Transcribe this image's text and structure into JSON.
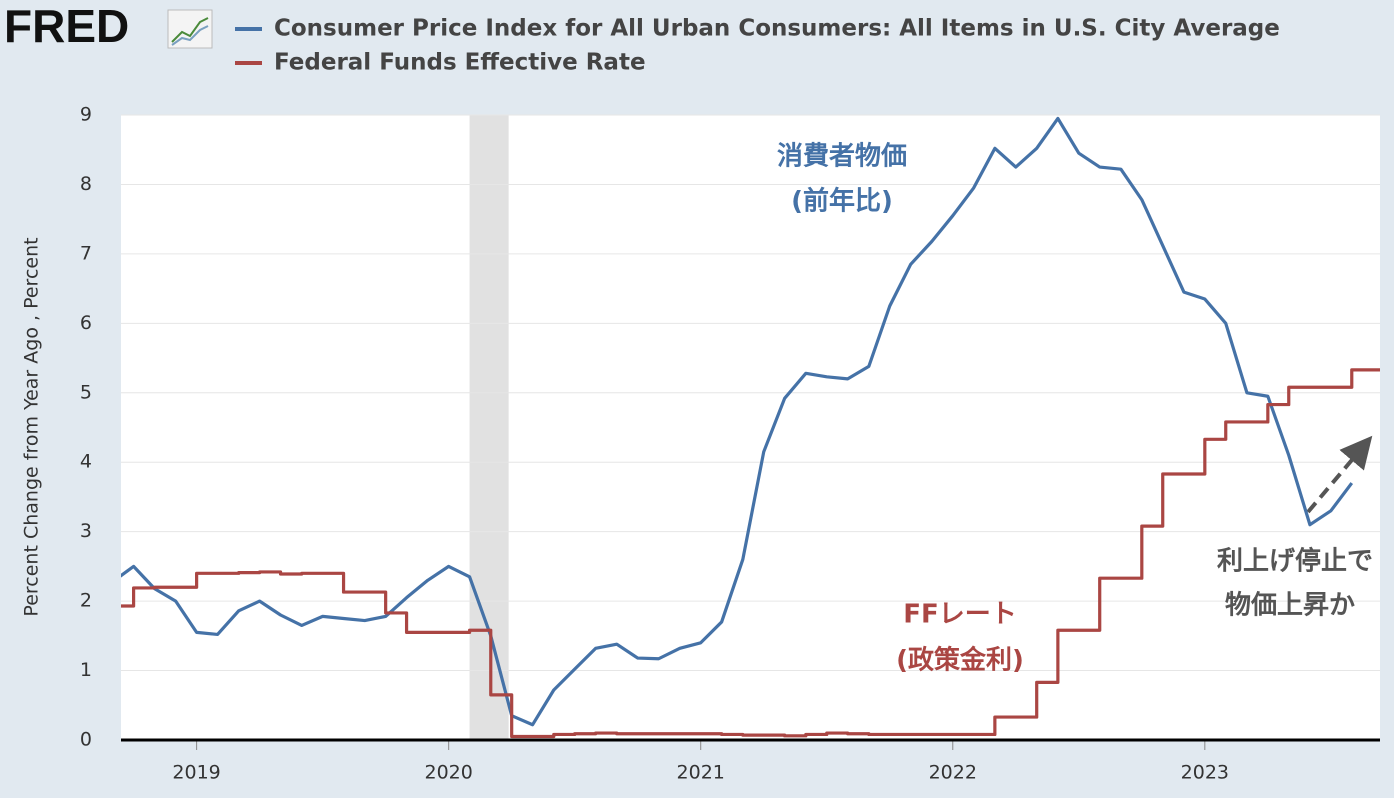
{
  "logo": "FRED",
  "chart_data": {
    "type": "line",
    "y_axis_label": "Percent Change from Year Ago , Percent",
    "xlim": [
      2018.7,
      2023.695
    ],
    "xticks": [
      2019,
      2020,
      2021,
      2022,
      2023
    ],
    "ylim": [
      0,
      9
    ],
    "yticks": [
      0,
      1,
      2,
      3,
      4,
      5,
      6,
      7,
      8,
      9
    ],
    "grid": true,
    "recession_shading": [
      2020.083,
      2020.238
    ],
    "series": [
      {
        "name": "Consumer Price Index for All Urban Consumers: All Items in U.S. City Average",
        "color": "#4572a7",
        "drawstyle": "line",
        "x": [
          2018.667,
          2018.75,
          2018.833,
          2018.917,
          2019.0,
          2019.083,
          2019.167,
          2019.25,
          2019.333,
          2019.417,
          2019.5,
          2019.583,
          2019.667,
          2019.75,
          2019.833,
          2019.917,
          2020.0,
          2020.083,
          2020.167,
          2020.25,
          2020.333,
          2020.417,
          2020.5,
          2020.583,
          2020.667,
          2020.75,
          2020.833,
          2020.917,
          2021.0,
          2021.083,
          2021.167,
          2021.25,
          2021.333,
          2021.417,
          2021.5,
          2021.583,
          2021.667,
          2021.75,
          2021.833,
          2021.917,
          2022.0,
          2022.083,
          2022.167,
          2022.25,
          2022.333,
          2022.417,
          2022.5,
          2022.583,
          2022.667,
          2022.75,
          2022.833,
          2022.917,
          2023.0,
          2023.083,
          2023.167,
          2023.25,
          2023.333,
          2023.417,
          2023.5,
          2023.583
        ],
        "values": [
          2.28,
          2.5,
          2.18,
          2.0,
          1.55,
          1.52,
          1.86,
          2.0,
          1.8,
          1.65,
          1.78,
          1.75,
          1.72,
          1.78,
          2.05,
          2.3,
          2.5,
          2.35,
          1.5,
          0.35,
          0.22,
          0.72,
          1.02,
          1.32,
          1.38,
          1.18,
          1.17,
          1.32,
          1.4,
          1.7,
          2.6,
          4.15,
          4.92,
          5.28,
          5.23,
          5.2,
          5.38,
          6.25,
          6.85,
          7.18,
          7.55,
          7.95,
          8.52,
          8.25,
          8.52,
          8.95,
          8.45,
          8.25,
          8.22,
          7.78,
          7.12,
          6.45,
          6.35,
          6.0,
          5.0,
          4.95,
          4.1,
          3.1,
          3.3,
          3.7
        ]
      },
      {
        "name": "Federal Funds Effective Rate",
        "color": "#aa4643",
        "drawstyle": "steps-post",
        "x": [
          2018.667,
          2018.75,
          2018.833,
          2018.917,
          2019.0,
          2019.083,
          2019.167,
          2019.25,
          2019.333,
          2019.417,
          2019.5,
          2019.583,
          2019.667,
          2019.75,
          2019.833,
          2019.917,
          2020.0,
          2020.083,
          2020.167,
          2020.25,
          2020.333,
          2020.417,
          2020.5,
          2020.583,
          2020.667,
          2020.75,
          2020.833,
          2020.917,
          2021.0,
          2021.083,
          2021.167,
          2021.25,
          2021.333,
          2021.417,
          2021.5,
          2021.583,
          2021.667,
          2021.75,
          2021.833,
          2021.917,
          2022.0,
          2022.083,
          2022.167,
          2022.25,
          2022.333,
          2022.417,
          2022.5,
          2022.583,
          2022.667,
          2022.75,
          2022.833,
          2022.917,
          2023.0,
          2023.083,
          2023.167,
          2023.25,
          2023.333,
          2023.417,
          2023.5,
          2023.583,
          2023.667
        ],
        "values": [
          1.93,
          2.19,
          2.2,
          2.2,
          2.4,
          2.4,
          2.41,
          2.42,
          2.39,
          2.4,
          2.4,
          2.13,
          2.13,
          1.83,
          1.55,
          1.55,
          1.55,
          1.58,
          0.65,
          0.05,
          0.05,
          0.08,
          0.09,
          0.1,
          0.09,
          0.09,
          0.09,
          0.09,
          0.09,
          0.08,
          0.07,
          0.07,
          0.06,
          0.08,
          0.1,
          0.09,
          0.08,
          0.08,
          0.08,
          0.08,
          0.08,
          0.08,
          0.33,
          0.33,
          0.83,
          1.58,
          1.58,
          2.33,
          2.33,
          3.08,
          3.83,
          3.83,
          4.33,
          4.58,
          4.58,
          4.83,
          5.08,
          5.08,
          5.08,
          5.33,
          5.33
        ]
      }
    ],
    "annotations": [
      {
        "lines": [
          "消費者物価",
          "(前年比)"
        ],
        "color": "#4572a7"
      },
      {
        "lines": [
          "FFレート",
          "(政策金利)"
        ],
        "color": "#aa4643"
      },
      {
        "lines": [
          "利上げ停止で",
          "物価上昇か"
        ],
        "color": "#555555"
      }
    ]
  }
}
